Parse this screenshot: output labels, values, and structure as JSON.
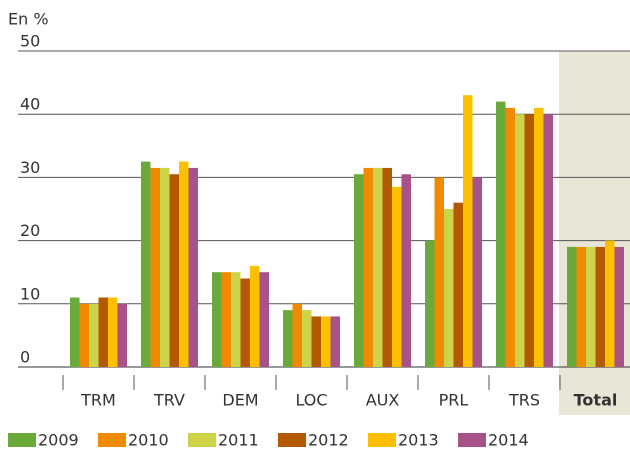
{
  "chart_data": {
    "type": "bar",
    "title": "En %",
    "categories": [
      "TRM",
      "TRV",
      "DEM",
      "LOC",
      "AUX",
      "PRL",
      "TRS",
      "Total"
    ],
    "series": [
      {
        "name": "2009",
        "color": "#6aaa3a",
        "values": [
          11,
          32.5,
          15,
          9,
          30.5,
          20,
          42,
          19
        ]
      },
      {
        "name": "2010",
        "color": "#f08a00",
        "values": [
          10,
          31.5,
          15,
          10,
          31.5,
          30,
          41,
          19
        ]
      },
      {
        "name": "2011",
        "color": "#cdd44a",
        "values": [
          10,
          31.5,
          15,
          9,
          31.5,
          25,
          40,
          19
        ]
      },
      {
        "name": "2012",
        "color": "#b35a00",
        "values": [
          11,
          30.5,
          14,
          8,
          31.5,
          26,
          40,
          19
        ]
      },
      {
        "name": "2013",
        "color": "#fcc000",
        "values": [
          11,
          32.5,
          16,
          8,
          28.5,
          43,
          41,
          20
        ]
      },
      {
        "name": "2014",
        "color": "#a8528a",
        "values": [
          10,
          31.5,
          15,
          8,
          30.5,
          30,
          40,
          19
        ]
      }
    ],
    "ylim": [
      0,
      50
    ],
    "yticks": [
      0,
      10,
      20,
      30,
      40,
      50
    ],
    "grid": true,
    "highlight": "Total",
    "highlight_color": "#e8e6d7",
    "legend": "bottom"
  }
}
